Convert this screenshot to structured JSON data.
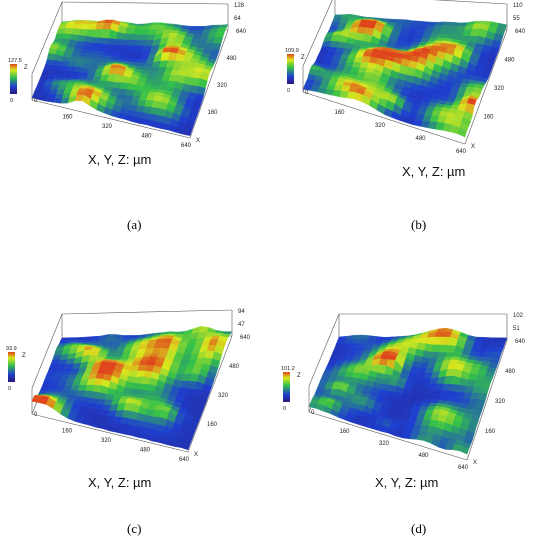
{
  "figure": {
    "panels": [
      {
        "id": "a",
        "caption": "(a)",
        "axes_caption": "X, Y, Z: µm",
        "z_max_label": "128",
        "z_mid_label": "64",
        "z_zero_label": "0",
        "colorbar_max": "127.5",
        "z_axis_letter": "Z",
        "x_axis_letter": "X",
        "x_ticks": [
          "160",
          "320",
          "480",
          "640"
        ],
        "y_ticks": [
          "160",
          "320",
          "480",
          "640"
        ],
        "origin_label": "0"
      },
      {
        "id": "b",
        "caption": "(b)",
        "axes_caption": "X, Y, Z: µm",
        "z_max_label": "110",
        "z_mid_label": "55",
        "z_zero_label": "0",
        "colorbar_max": "109.9",
        "z_axis_letter": "Z",
        "x_axis_letter": "X",
        "x_ticks": [
          "160",
          "320",
          "480",
          "640"
        ],
        "y_ticks": [
          "160",
          "320",
          "480",
          "640"
        ],
        "origin_label": "0"
      },
      {
        "id": "c",
        "caption": "(c)",
        "axes_caption": "X, Y, Z: µm",
        "z_max_label": "94",
        "z_mid_label": "47",
        "z_zero_label": "0",
        "colorbar_max": "93.9",
        "z_axis_letter": "Z",
        "x_axis_letter": "X",
        "x_ticks": [
          "160",
          "320",
          "480",
          "640"
        ],
        "y_ticks": [
          "160",
          "320",
          "480",
          "640"
        ],
        "origin_label": "0"
      },
      {
        "id": "d",
        "caption": "(d)",
        "axes_caption": "X, Y, Z: µm",
        "z_max_label": "102",
        "z_mid_label": "51",
        "z_zero_label": "0",
        "colorbar_max": "101.2",
        "z_axis_letter": "Z",
        "x_axis_letter": "X",
        "x_ticks": [
          "160",
          "320",
          "480",
          "640"
        ],
        "y_ticks": [
          "160",
          "320",
          "480",
          "640"
        ],
        "origin_label": "0"
      }
    ],
    "colors": {
      "deep": "#2a1a7a",
      "low": "#1e3fd0",
      "mid": "#33c04a",
      "high": "#d8e81e",
      "peak": "#e0441c",
      "axis": "#555555"
    }
  }
}
